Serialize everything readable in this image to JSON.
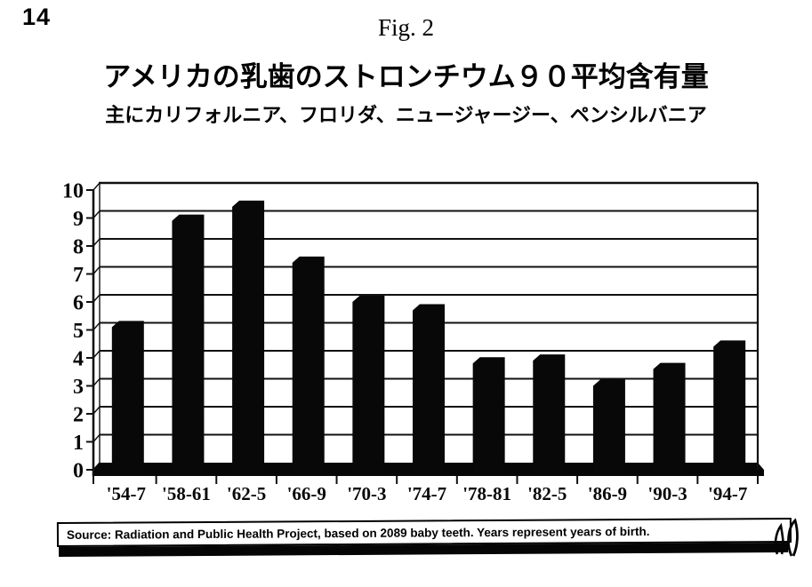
{
  "page": {
    "number": "14",
    "figure_label": "Fig. 2"
  },
  "chart_data": {
    "type": "bar",
    "style": "3d-black-bars-scanned",
    "title": "アメリカの乳歯のストロンチウム９０平均含有量",
    "subtitle": "主にカリフォルニア、フロリダ、ニュージャージー、ペンシルバニア",
    "categories": [
      "'54-7",
      "'58-61",
      "'62-5",
      "'66-9",
      "'70-3",
      "'74-7",
      "'78-81",
      "'82-5",
      "'86-9",
      "'90-3",
      "'94-7"
    ],
    "values": [
      5.1,
      8.9,
      9.4,
      7.4,
      6.0,
      5.7,
      3.8,
      3.9,
      3.0,
      3.6,
      4.4
    ],
    "xlabel": "",
    "ylabel": "",
    "ylim": [
      0,
      10
    ],
    "yticks": [
      0,
      1,
      2,
      3,
      4,
      5,
      6,
      7,
      8,
      9,
      10
    ],
    "grid": true,
    "legend": false,
    "bar_color": "#080808"
  },
  "source": {
    "text": "Source: Radiation and Public Health Project, based on 2089 baby teeth.  Years represent years of birth."
  },
  "colors": {
    "background": "#ffffff",
    "ink": "#000000"
  }
}
